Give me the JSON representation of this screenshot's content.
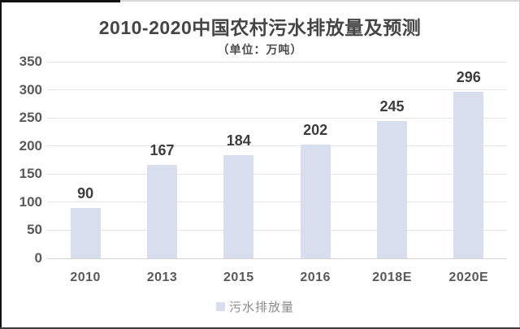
{
  "chart_data": {
    "type": "bar",
    "title": "2010-2020中国农村污水排放量及预测",
    "subtitle": "（单位：万吨）",
    "categories": [
      "2010",
      "2013",
      "2015",
      "2016",
      "2018E",
      "2020E"
    ],
    "values": [
      90,
      167,
      184,
      202,
      245,
      296
    ],
    "y_ticks": [
      0,
      50,
      100,
      150,
      200,
      250,
      300,
      350
    ],
    "ylim": [
      0,
      350
    ],
    "xlabel": "",
    "ylabel": "",
    "grid": true,
    "bar_color": "#d8deee",
    "legend_position": "bottom",
    "legend": [
      {
        "label": "污水排放量",
        "color": "#d8deee"
      }
    ]
  }
}
